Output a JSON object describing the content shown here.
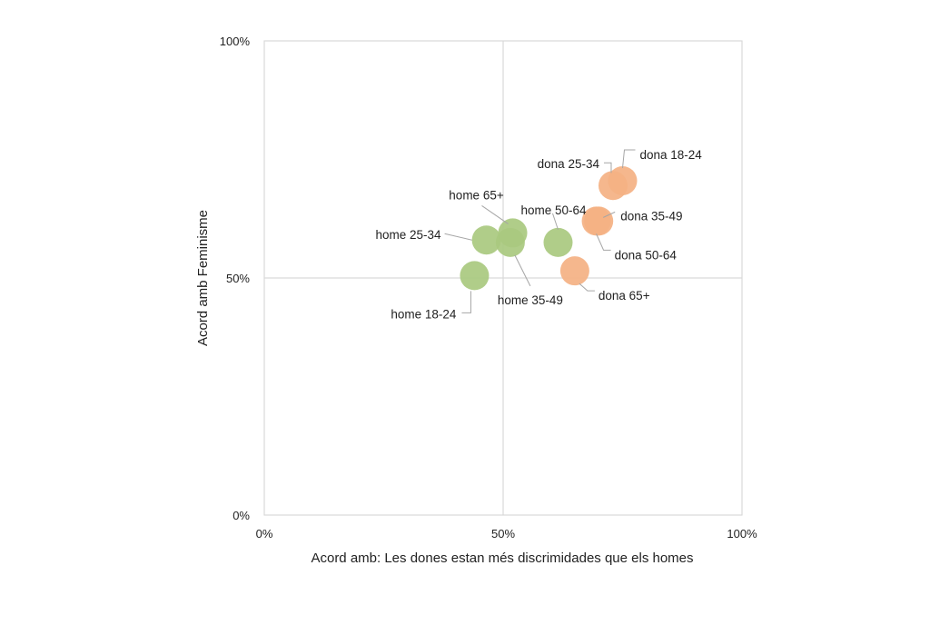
{
  "chart_data": {
    "type": "scatter",
    "title": "",
    "xlabel": "Acord amb: Les dones estan més discrimidades que els homes",
    "ylabel": "Acord amb Feminisme",
    "xlim": [
      0,
      100
    ],
    "ylim": [
      0,
      100
    ],
    "x_ticks": [
      "0%",
      "50%",
      "100%"
    ],
    "y_ticks": [
      "0%",
      "50%",
      "100%"
    ],
    "grid": "center lines at 50%",
    "legend": "none",
    "colors": {
      "home": "#a9c97f",
      "dona": "#f4b183",
      "leader": "#a6a6a6",
      "frame": "#d9d9d9"
    },
    "points": [
      {
        "label": "home 18-24",
        "group": "home",
        "x": 44,
        "y": 50.5
      },
      {
        "label": "home 25-34",
        "group": "home",
        "x": 46.5,
        "y": 58
      },
      {
        "label": "home 35-49",
        "group": "home",
        "x": 51.5,
        "y": 57.5
      },
      {
        "label": "home 65+",
        "group": "home",
        "x": 52,
        "y": 59.5
      },
      {
        "label": "home 50-64",
        "group": "home",
        "x": 61.5,
        "y": 57.5
      },
      {
        "label": "dona 65+",
        "group": "dona",
        "x": 65,
        "y": 51.5
      },
      {
        "label": "dona 50-64",
        "group": "dona",
        "x": 69.5,
        "y": 62
      },
      {
        "label": "dona 35-49",
        "group": "dona",
        "x": 70,
        "y": 62
      },
      {
        "label": "dona 25-34",
        "group": "dona",
        "x": 73,
        "y": 69.5
      },
      {
        "label": "dona 18-24",
        "group": "dona",
        "x": 75,
        "y": 70.5
      }
    ]
  }
}
